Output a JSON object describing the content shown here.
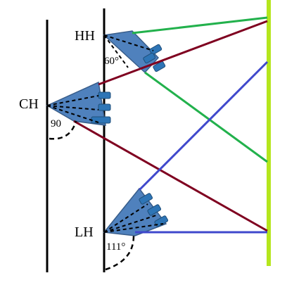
{
  "diagram": {
    "labels": {
      "hh": "HH",
      "ch": "CH",
      "lh": "LH"
    },
    "angles": {
      "hh": "60°",
      "ch": "90",
      "lh": "111°"
    }
  },
  "colors": {
    "background": "#ffffff",
    "wall_lines": "#000000",
    "screen": "#b5e61d",
    "triangle_fill": "#4f81bd",
    "triangle_stroke": "#385d8a",
    "green_lines": "#22b14c",
    "red_lines": "#7f0020",
    "blue_lines": "#3f48cc",
    "dashes": "#000000"
  }
}
